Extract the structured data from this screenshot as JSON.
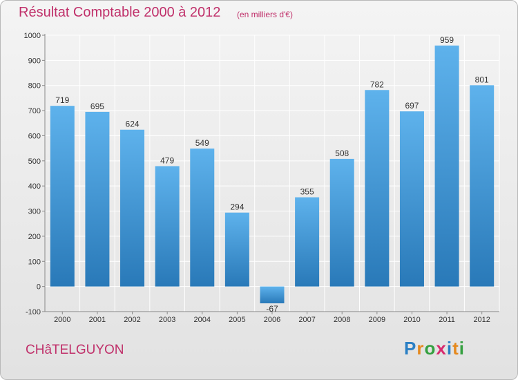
{
  "header": {
    "title": "Résultat Comptable 2000 à 2012",
    "subtitle": "(en milliers d'€)"
  },
  "footer": {
    "commune": "CHâTELGUYON",
    "logo_text": "Proxiti",
    "logo_letter_colors": [
      "#2a7fc4",
      "#e5891e",
      "#35a040",
      "#d82a6e",
      "#2a7fc4",
      "#e5891e",
      "#35a040"
    ]
  },
  "chart_data": {
    "type": "bar",
    "categories": [
      "2000",
      "2001",
      "2002",
      "2003",
      "2004",
      "2005",
      "2006",
      "2007",
      "2008",
      "2009",
      "2010",
      "2011",
      "2012"
    ],
    "values": [
      719,
      695,
      624,
      479,
      549,
      294,
      -67,
      355,
      508,
      782,
      697,
      959,
      801
    ],
    "data_labels": [
      "719",
      "695",
      "624",
      "479",
      "549",
      "294",
      "-67",
      "355",
      "508",
      "782",
      "697",
      "959",
      "801"
    ],
    "ylim": [
      -100,
      1000
    ],
    "yticks": [
      -100,
      0,
      100,
      200,
      300,
      400,
      500,
      600,
      700,
      800,
      900,
      1000
    ],
    "grid": true,
    "bar_color_top": "#5eb2ec",
    "bar_color_bottom": "#2979b8",
    "xlabel": "",
    "ylabel": ""
  }
}
